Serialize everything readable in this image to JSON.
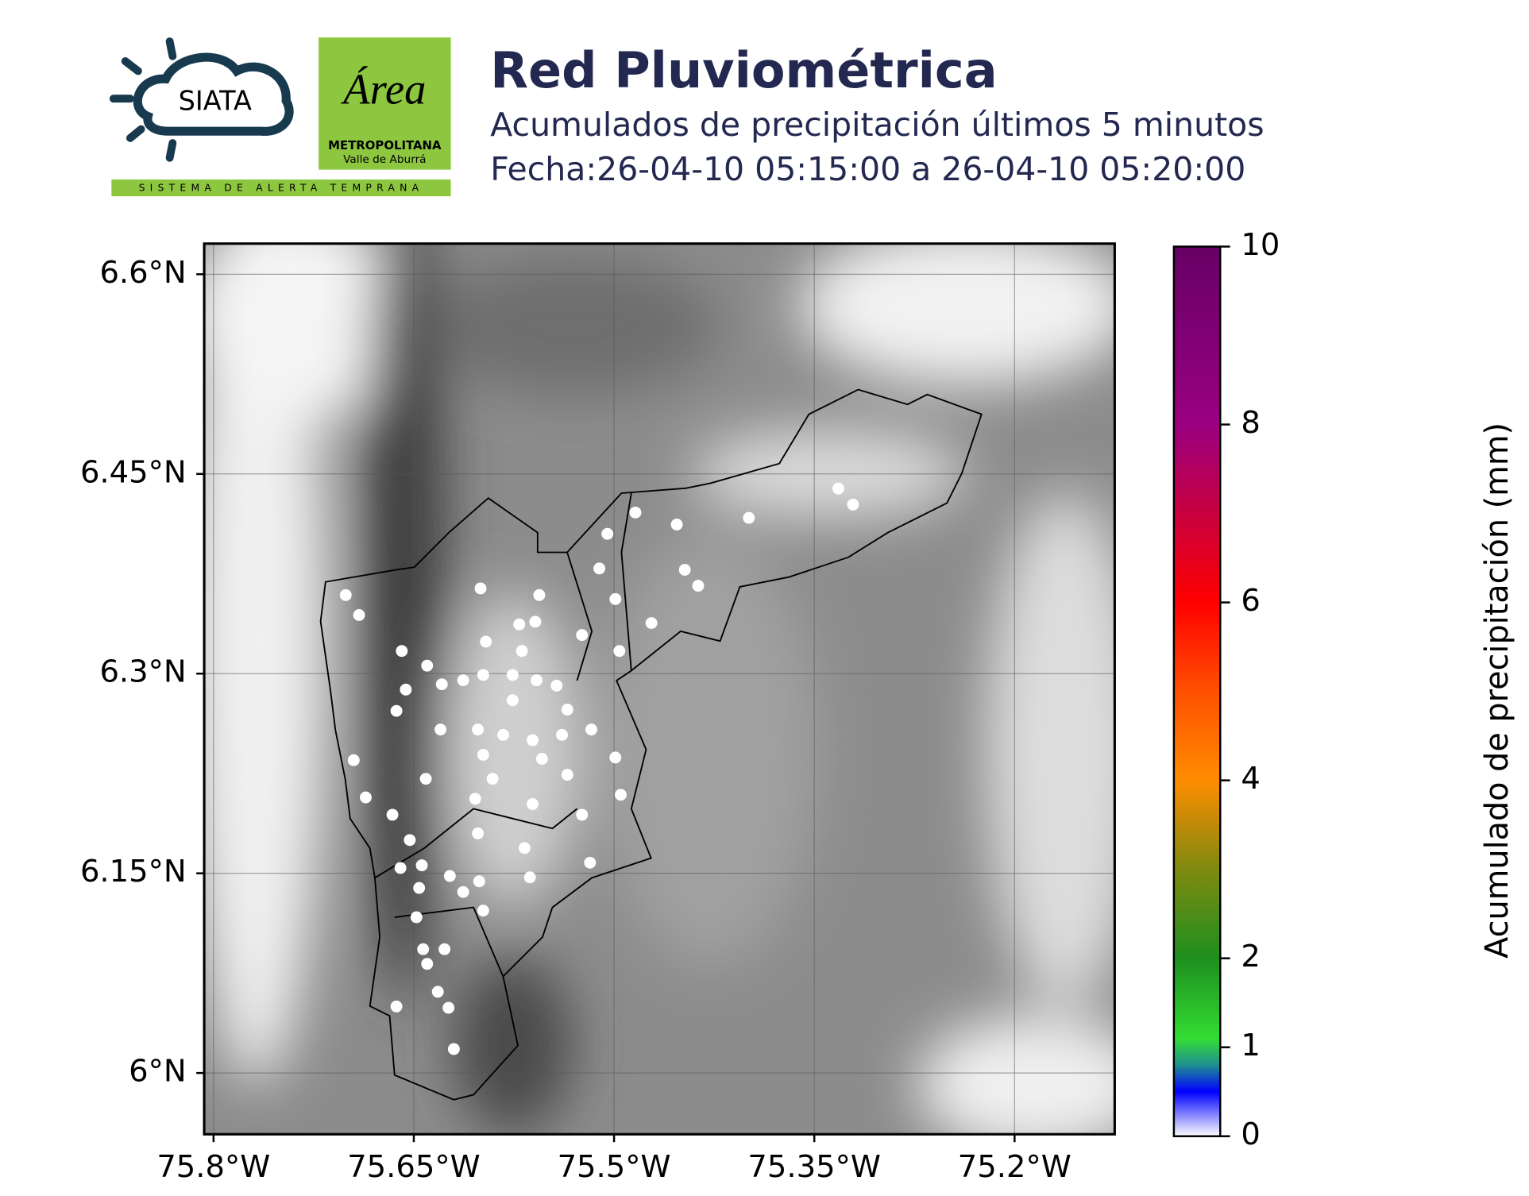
{
  "logos": {
    "siata": "SIATA",
    "area": "Área",
    "metropolitana": "METROPOLITANA",
    "valle": "Valle de Aburrá",
    "banner": "SISTEMA DE ALERTA TEMPRANA"
  },
  "header": {
    "title": "Red Pluviométrica",
    "subtitle": "Acumulados de precipitación últimos 5 minutos",
    "date": "Fecha:26-04-10 05:15:00 a 26-04-10 05:20:00"
  },
  "map": {
    "xlim": [
      -75.807,
      -75.125
    ],
    "ylim": [
      5.954,
      6.623
    ],
    "grid": true,
    "xticks": [
      {
        "value": -75.8,
        "label": "75.8°W"
      },
      {
        "value": -75.65,
        "label": "75.65°W"
      },
      {
        "value": -75.5,
        "label": "75.5°W"
      },
      {
        "value": -75.35,
        "label": "75.35°W"
      },
      {
        "value": -75.2,
        "label": "75.2°W"
      }
    ],
    "yticks": [
      {
        "value": 6.6,
        "label": "6.6°N"
      },
      {
        "value": 6.45,
        "label": "6.45°N"
      },
      {
        "value": 6.3,
        "label": "6.3°N"
      },
      {
        "value": 6.15,
        "label": "6.15°N"
      },
      {
        "value": 6.0,
        "label": "6°N"
      }
    ],
    "station_color": "#ffffff",
    "stations": {
      "lon": [
        -75.701,
        -75.691,
        -75.6,
        -75.556,
        -75.505,
        -75.484,
        -75.453,
        -75.399,
        -75.332,
        -75.321,
        -75.511,
        -75.499,
        -75.447,
        -75.437,
        -75.472,
        -75.524,
        -75.496,
        -75.659,
        -75.64,
        -75.596,
        -75.571,
        -75.559,
        -75.569,
        -75.598,
        -75.576,
        -75.558,
        -75.613,
        -75.629,
        -75.656,
        -75.663,
        -75.576,
        -75.543,
        -75.535,
        -75.539,
        -75.561,
        -75.583,
        -75.602,
        -75.63,
        -75.598,
        -75.554,
        -75.517,
        -75.499,
        -75.695,
        -75.641,
        -75.591,
        -75.535,
        -75.495,
        -75.686,
        -75.666,
        -75.604,
        -75.561,
        -75.524,
        -75.653,
        -75.602,
        -75.567,
        -75.66,
        -75.644,
        -75.623,
        -75.601,
        -75.563,
        -75.518,
        -75.646,
        -75.613,
        -75.598,
        -75.648,
        -75.643,
        -75.627,
        -75.64,
        -75.632,
        -75.663,
        -75.624,
        -75.62
      ],
      "lat": [
        6.359,
        6.344,
        6.364,
        6.359,
        6.405,
        6.421,
        6.412,
        6.417,
        6.439,
        6.427,
        6.379,
        6.356,
        6.378,
        6.366,
        6.338,
        6.329,
        6.317,
        6.317,
        6.306,
        6.324,
        6.337,
        6.339,
        6.317,
        6.299,
        6.299,
        6.295,
        6.295,
        6.292,
        6.288,
        6.272,
        6.28,
        6.291,
        6.273,
        6.254,
        6.25,
        6.254,
        6.258,
        6.258,
        6.239,
        6.236,
        6.258,
        6.237,
        6.235,
        6.221,
        6.221,
        6.224,
        6.209,
        6.207,
        6.194,
        6.206,
        6.202,
        6.194,
        6.175,
        6.18,
        6.169,
        6.154,
        6.156,
        6.148,
        6.144,
        6.147,
        6.158,
        6.139,
        6.136,
        6.122,
        6.117,
        6.093,
        6.093,
        6.082,
        6.061,
        6.05,
        6.049,
        6.018
      ]
    }
  },
  "colorbar": {
    "label": "Acumulado de precipitación (mm)",
    "lim": [
      0,
      10
    ],
    "ticks": [
      0,
      1,
      2,
      4,
      6,
      8,
      10
    ]
  }
}
